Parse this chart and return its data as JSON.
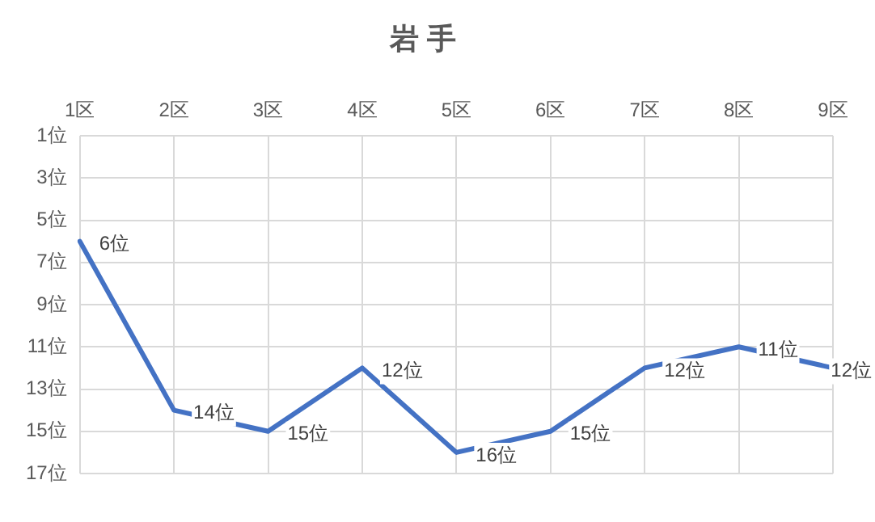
{
  "chart_data": {
    "type": "line",
    "title": "岩 手",
    "categories": [
      "1区",
      "2区",
      "3区",
      "4区",
      "5区",
      "6区",
      "7区",
      "8区",
      "9区"
    ],
    "series": [
      {
        "color": "#4472c4",
        "values": [
          6,
          14,
          15,
          12,
          16,
          15,
          12,
          11,
          12
        ],
        "value_labels": [
          "6位",
          "14位",
          "15位",
          "12位",
          "16位",
          "15位",
          "12位",
          "11位",
          "12位"
        ]
      }
    ],
    "ylim": [
      17,
      1
    ],
    "yticks": [
      {
        "value": 1,
        "label": "1位"
      },
      {
        "value": 3,
        "label": "3位"
      },
      {
        "value": 5,
        "label": "5位"
      },
      {
        "value": 7,
        "label": "7位"
      },
      {
        "value": 9,
        "label": "9位"
      },
      {
        "value": 11,
        "label": "11位"
      },
      {
        "value": 13,
        "label": "13位"
      },
      {
        "value": 15,
        "label": "15位"
      },
      {
        "value": 17,
        "label": "17位"
      }
    ],
    "grid": true,
    "legend": false,
    "marker": "none",
    "line_style": "solid"
  }
}
